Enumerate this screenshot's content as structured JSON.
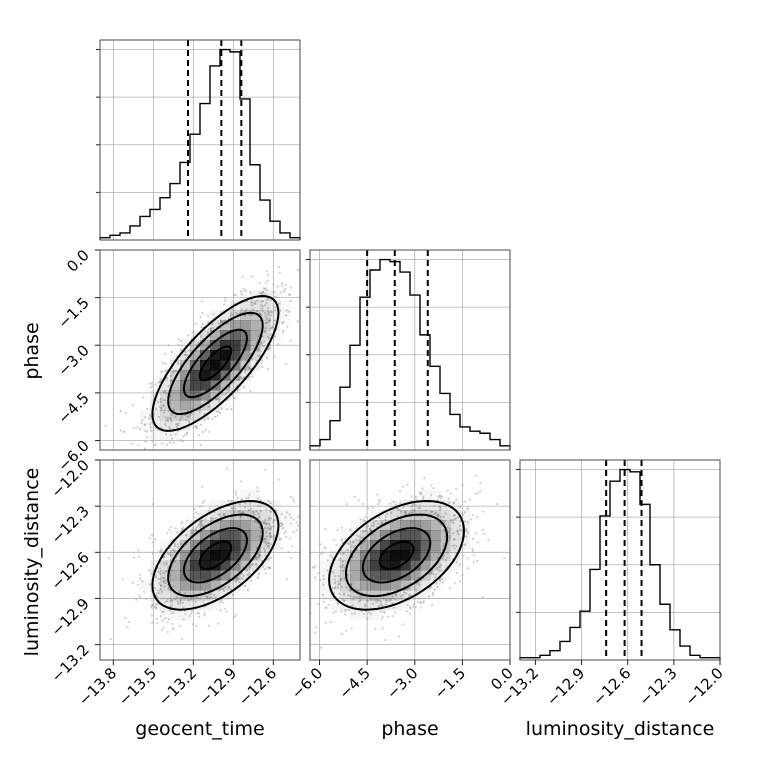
{
  "chart_data": {
    "type": "corner",
    "parameters": [
      "geocent_time",
      "phase",
      "luminosity_distance"
    ],
    "ranges": {
      "geocent_time": [
        -13.9,
        -12.4
      ],
      "phase": [
        -6.3,
        0.0
      ],
      "luminosity_distance": [
        -13.3,
        -12.0
      ]
    },
    "ticks": {
      "geocent_time": [
        "−13.8",
        "−13.5",
        "−13.2",
        "−12.9",
        "−12.6"
      ],
      "phase": [
        "−6.0",
        "−4.5",
        "−3.0",
        "−1.5",
        "0.0"
      ],
      "luminosity_distance": [
        "−13.2",
        "−12.9",
        "−12.6",
        "−12.3",
        "−12.0"
      ]
    },
    "tick_values": {
      "geocent_time": [
        -13.8,
        -13.5,
        -13.2,
        -12.9,
        -12.6
      ],
      "phase": [
        -6.0,
        -4.5,
        -3.0,
        -1.5,
        0.0
      ],
      "luminosity_distance": [
        -13.2,
        -12.9,
        -12.6,
        -12.3,
        -12.0
      ]
    },
    "quantiles": {
      "geocent_time": [
        -13.24,
        -12.99,
        -12.84
      ],
      "phase": [
        -4.5,
        -3.63,
        -2.59
      ],
      "luminosity_distance": [
        -12.74,
        -12.62,
        -12.51
      ]
    },
    "histograms": {
      "geocent_time": {
        "range": [
          -13.9,
          -12.4
        ],
        "counts": [
          1,
          2,
          3,
          6,
          10,
          13,
          18,
          24,
          33,
          45,
          58,
          74,
          81,
          80,
          60,
          32,
          17,
          8,
          3,
          1
        ]
      },
      "phase": {
        "range": [
          -6.3,
          0.0
        ],
        "counts": [
          2,
          5,
          14,
          30,
          50,
          73,
          86,
          91,
          90,
          85,
          74,
          55,
          40,
          27,
          17,
          11,
          9,
          8,
          5,
          2
        ]
      },
      "luminosity_distance": {
        "range": [
          -13.3,
          -12.0
        ],
        "counts": [
          1,
          1,
          2,
          4,
          8,
          14,
          21,
          39,
          62,
          77,
          82,
          81,
          67,
          41,
          24,
          13,
          6,
          2,
          1,
          1
        ]
      }
    },
    "correlations": {
      "phase_vs_geocent_time": 0.75,
      "luminosity_distance_vs_geocent_time": 0.55,
      "luminosity_distance_vs_phase": 0.45
    },
    "colors": {
      "hist": "#000000",
      "density": "#000000",
      "points": "#a8a8a8"
    },
    "grid": true
  },
  "labels": {
    "geocent_time": "geocent_time",
    "phase": "phase",
    "luminosity_distance": "luminosity_distance"
  }
}
